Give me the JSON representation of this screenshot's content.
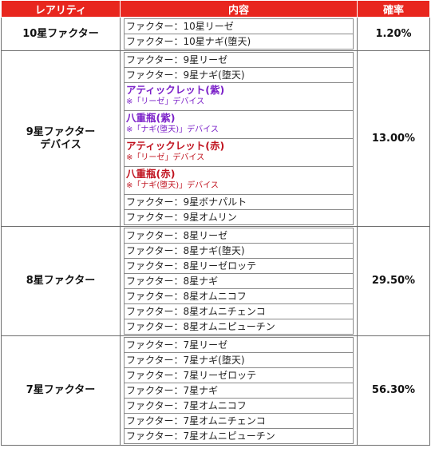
{
  "header": {
    "rarity": "レアリティ",
    "content": "内容",
    "rate": "確率"
  },
  "groups": [
    {
      "rarity_lines": [
        "10星ファクター"
      ],
      "rate": "1.20%",
      "items": [
        {
          "text": "ファクター：10星リーゼ"
        },
        {
          "text": "ファクター：10星ナギ(堕天)"
        }
      ]
    },
    {
      "rarity_lines": [
        "9星ファクター",
        "デバイス"
      ],
      "rate": "13.00%",
      "items": [
        {
          "text": "ファクター：9星リーゼ"
        },
        {
          "text": "ファクター：9星ナギ(堕天)"
        },
        {
          "title": "アティックレット(紫)",
          "note": "※「リーゼ」デバイス",
          "color": "purple"
        },
        {
          "title": "八重瓶(紫)",
          "note": "※「ナギ(堕天)」デバイス",
          "color": "purple"
        },
        {
          "title": "アティックレット(赤)",
          "note": "※「リーゼ」デバイス",
          "color": "red"
        },
        {
          "title": "八重瓶(赤)",
          "note": "※「ナギ(堕天)」デバイス",
          "color": "red"
        },
        {
          "text": "ファクター：9星ボナパルト"
        },
        {
          "text": "ファクター：9星オムリン"
        }
      ]
    },
    {
      "rarity_lines": [
        "8星ファクター"
      ],
      "rate": "29.50%",
      "items": [
        {
          "text": "ファクター：8星リーゼ"
        },
        {
          "text": "ファクター：8星ナギ(堕天)"
        },
        {
          "text": "ファクター：8星リーゼロッテ"
        },
        {
          "text": "ファクター：8星ナギ"
        },
        {
          "text": "ファクター：8星オムニコフ"
        },
        {
          "text": "ファクター：8星オムニチェンコ"
        },
        {
          "text": "ファクター：8星オムニピューチン"
        }
      ]
    },
    {
      "rarity_lines": [
        "7星ファクター"
      ],
      "rate": "56.30%",
      "items": [
        {
          "text": "ファクター：7星リーゼ"
        },
        {
          "text": "ファクター：7星ナギ(堕天)"
        },
        {
          "text": "ファクター：7星リーゼロッテ"
        },
        {
          "text": "ファクター：7星ナギ"
        },
        {
          "text": "ファクター：7星オムニコフ"
        },
        {
          "text": "ファクター：7星オムニチェンコ"
        },
        {
          "text": "ファクター：7星オムニピューチン"
        }
      ]
    }
  ]
}
